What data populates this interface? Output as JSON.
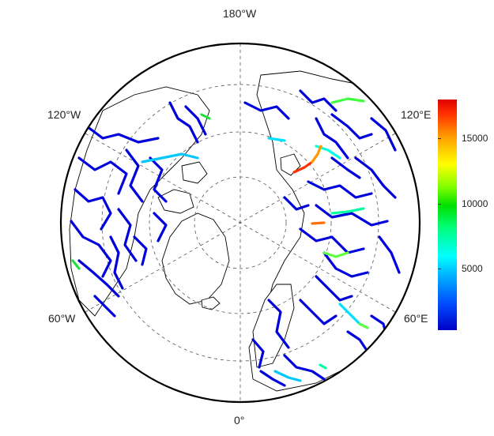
{
  "map": {
    "projection": "north-polar-stereographic",
    "longitude_labels": {
      "top": "180°W",
      "bottom": "0°",
      "upper_left": "120°W",
      "upper_right": "120°E",
      "lower_left": "60°W",
      "lower_right": "60°E"
    },
    "grid": "dashed graticule",
    "river_color_scale": {
      "min": 0,
      "max": 18000,
      "ticks": [
        "5000",
        "10000",
        "15000"
      ],
      "low_color": "#0000c8",
      "high_color": "#e00000"
    }
  }
}
